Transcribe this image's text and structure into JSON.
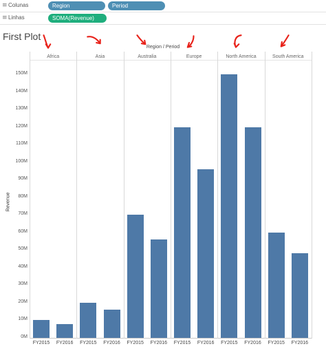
{
  "shelves": {
    "columns": {
      "label": "Colunas",
      "icon": "columns-icon",
      "pills": [
        "Region",
        "Period"
      ]
    },
    "rows": {
      "label": "Linhas",
      "icon": "rows-icon",
      "pills": [
        "SOMA(Revenue)"
      ]
    }
  },
  "sheet_title": "First Plot",
  "colors": {
    "bar": "#4e79a7",
    "dimension_pill": "#4e8fb4",
    "measure_pill": "#1fae7d",
    "annotation": "#e8231b"
  },
  "chart_data": {
    "type": "bar",
    "header": "Region / Period",
    "ylabel": "Revenue",
    "ylim": [
      0,
      150
    ],
    "yticks": [
      "0M",
      "10M",
      "20M",
      "30M",
      "40M",
      "50M",
      "60M",
      "70M",
      "80M",
      "90M",
      "100M",
      "110M",
      "120M",
      "130M",
      "140M",
      "150M"
    ],
    "regions": [
      "Africa",
      "Asia",
      "Australia",
      "Europe",
      "North America",
      "South America"
    ],
    "periods": [
      "FY2015",
      "FY2016"
    ],
    "series": [
      {
        "region": "Africa",
        "values": [
          10,
          8
        ]
      },
      {
        "region": "Asia",
        "values": [
          20,
          16
        ]
      },
      {
        "region": "Australia",
        "values": [
          70,
          56
        ]
      },
      {
        "region": "Europe",
        "values": [
          120,
          96
        ]
      },
      {
        "region": "North America",
        "values": [
          150,
          120
        ]
      },
      {
        "region": "South America",
        "values": [
          60,
          48
        ]
      }
    ],
    "grid": false,
    "annotations": "red hand-drawn arrows pointing down at each region header"
  }
}
